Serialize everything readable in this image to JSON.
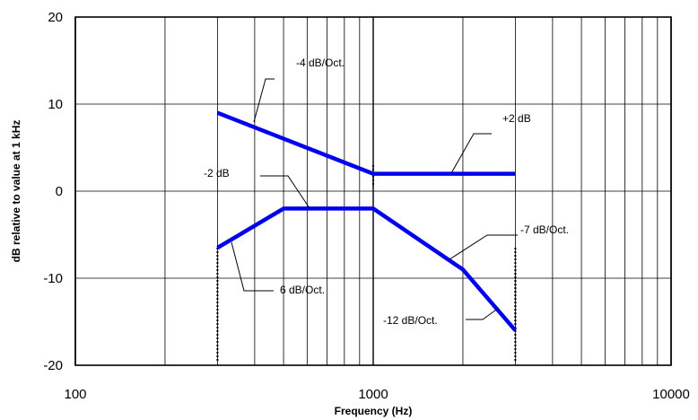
{
  "chart_data": {
    "type": "line",
    "title": "",
    "xlabel": "Frequency (Hz)",
    "ylabel": "dB relative to value at 1 kHz",
    "xscale": "log",
    "xlim": [
      100,
      10000
    ],
    "ylim": [
      -20,
      20
    ],
    "grid": true,
    "x_ticks": [
      "100",
      "1000",
      "10000"
    ],
    "y_ticks": [
      "20",
      "10",
      "0",
      "-10",
      "-20"
    ],
    "colors": {
      "series": "#0000ee",
      "grid": "#000000",
      "annotation": "#000000"
    },
    "series": [
      {
        "x": [
          300,
          1000,
          3000
        ],
        "y": [
          9,
          2,
          2
        ]
      },
      {
        "x": [
          300,
          500,
          1000,
          2000,
          3000
        ],
        "y": [
          -6.5,
          -2,
          -2,
          -9,
          -16
        ]
      }
    ],
    "annotations": [
      {
        "text": "-4 dB/Oct.",
        "x": 400,
        "y": 7.5
      },
      {
        "text": "+2 dB",
        "x": 2000,
        "y": 2
      },
      {
        "text": "-2 dB",
        "x": 650,
        "y": -2
      },
      {
        "text": "-7 dB/Oct.",
        "x": 2000,
        "y": -7.5
      },
      {
        "text": "6 dB/Oct.",
        "x": 310,
        "y": -6
      },
      {
        "text": "-12 dB/Oct.",
        "x": 2800,
        "y": -14.5
      }
    ],
    "markers": [
      300,
      3000
    ]
  }
}
